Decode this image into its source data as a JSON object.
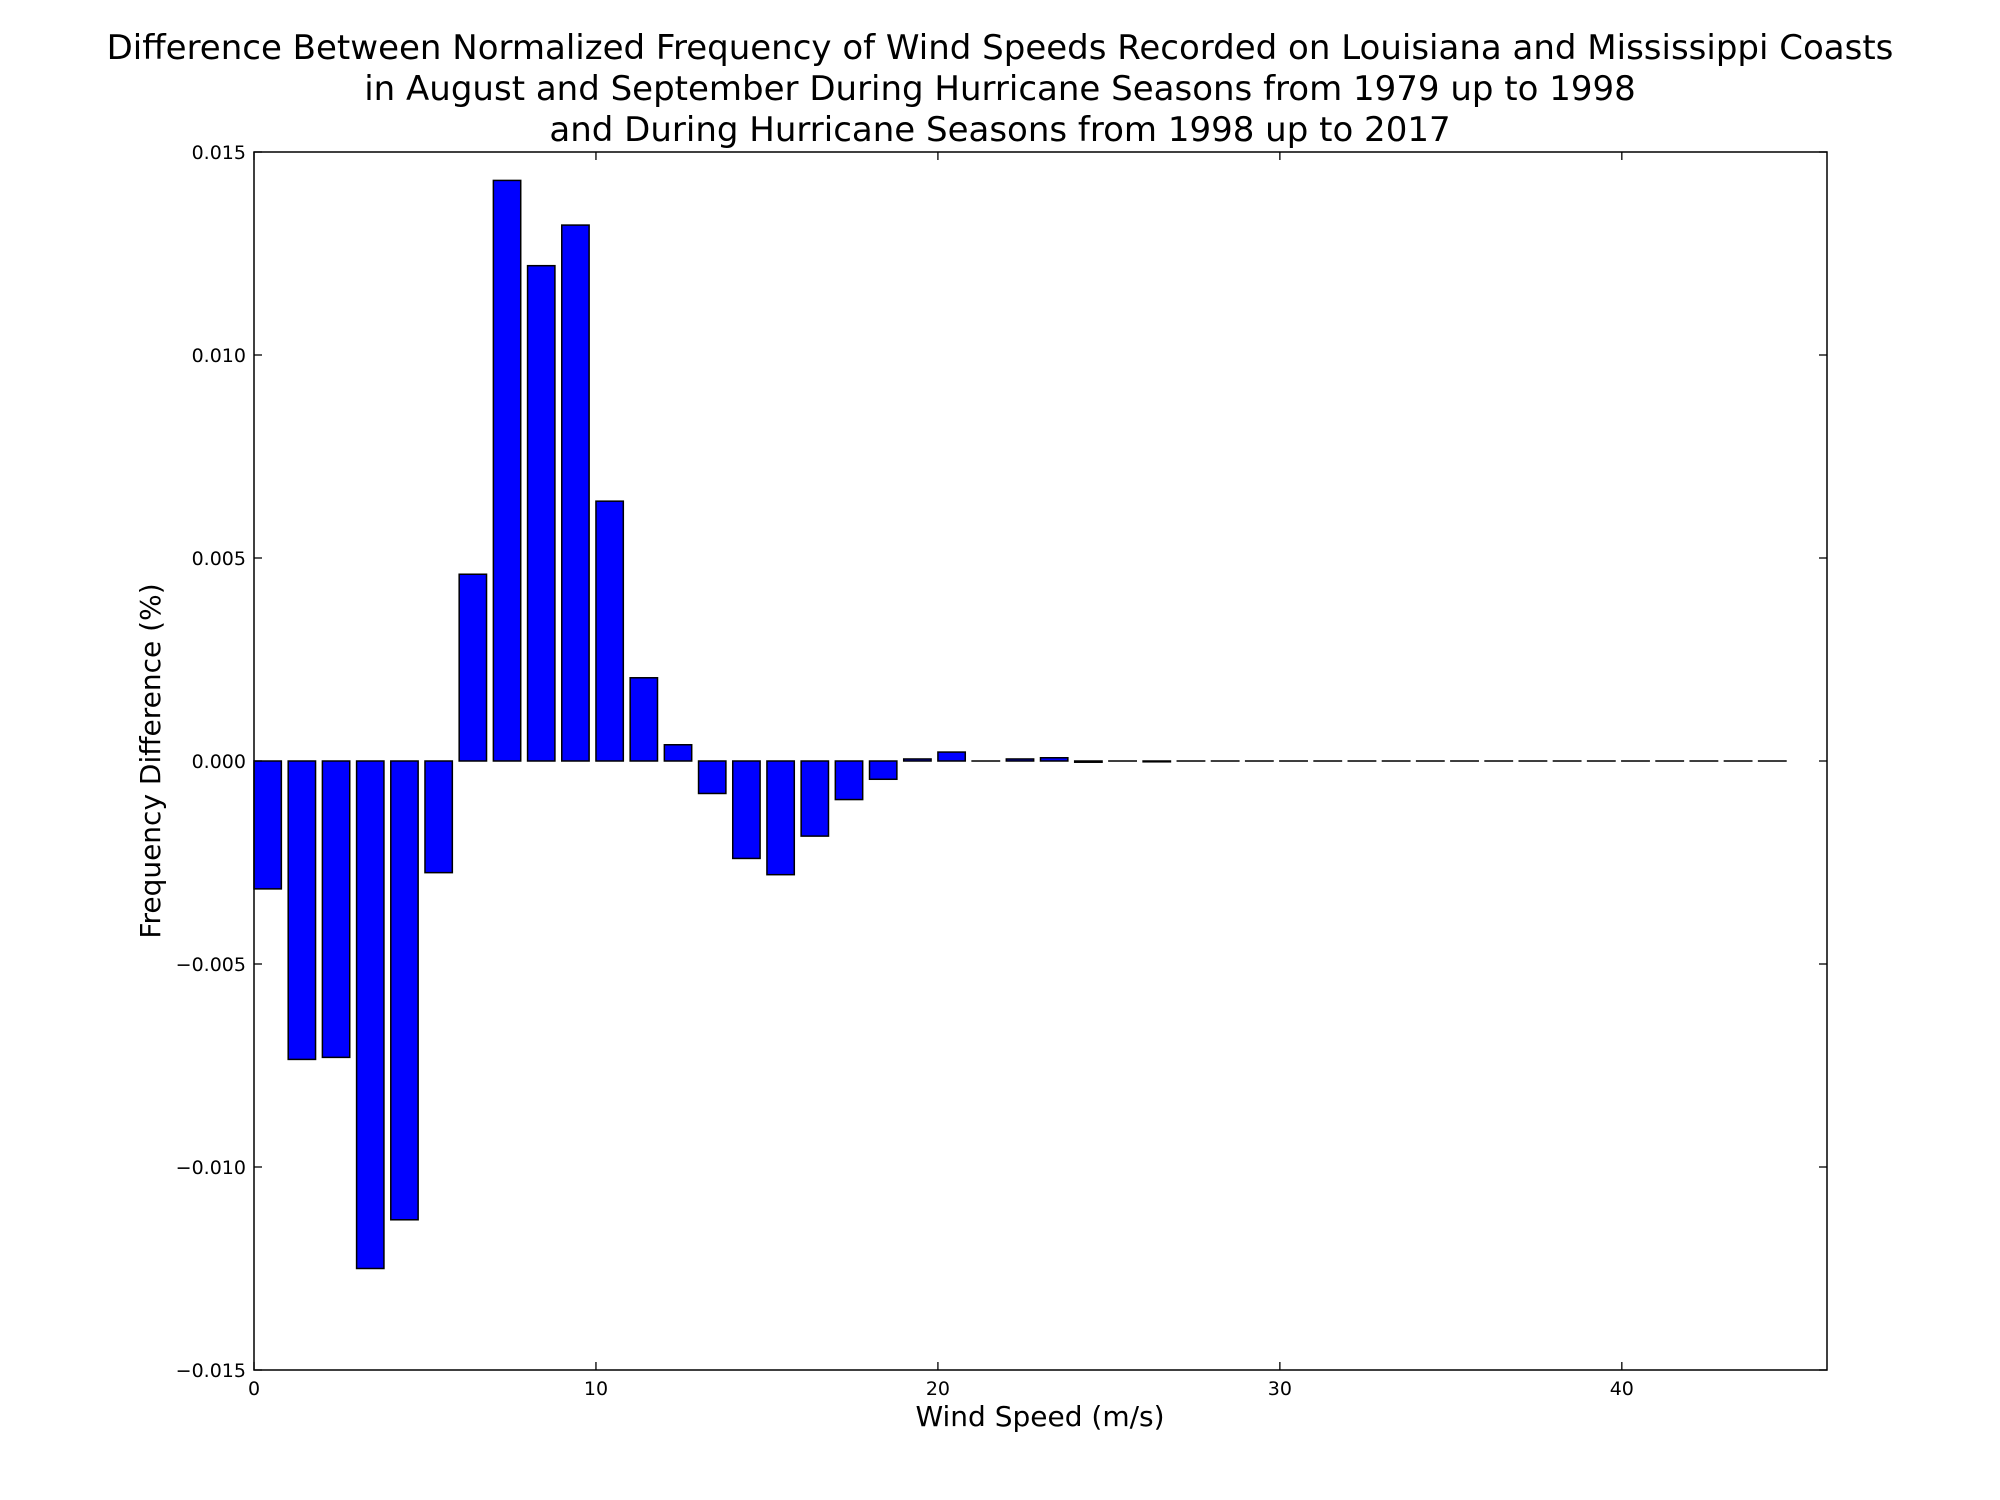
{
  "chart_data": {
    "type": "bar",
    "title_lines": [
      "Difference Between Normalized Frequency of Wind Speeds Recorded on Louisiana and Mississippi Coasts",
      "in August and September During Hurricane Seasons from 1979 up to 1998",
      "and During Hurricane Seasons from 1998 up to 2017"
    ],
    "xlabel": "Wind Speed (m/s)",
    "ylabel": "Frequency Difference (%)",
    "xlim": [
      0,
      46
    ],
    "ylim": [
      -0.015,
      0.015
    ],
    "x_ticks": [
      0,
      10,
      20,
      30,
      40
    ],
    "x_tick_labels": [
      "0",
      "10",
      "20",
      "30",
      "40"
    ],
    "y_ticks": [
      -0.015,
      -0.01,
      -0.005,
      0,
      0.005,
      0.01,
      0.015
    ],
    "y_tick_labels": [
      "−0.015",
      "−0.010",
      "−0.005",
      "0.000",
      "0.005",
      "0.010",
      "0.015"
    ],
    "bar_width": 0.8,
    "bar_color": "#0000ff",
    "bar_edge_color": "#000000",
    "grid": false,
    "x": [
      0,
      1,
      2,
      3,
      4,
      5,
      6,
      7,
      8,
      9,
      10,
      11,
      12,
      13,
      14,
      15,
      16,
      17,
      18,
      19,
      20,
      21,
      22,
      23,
      24,
      25,
      26,
      27,
      28,
      29,
      30,
      31,
      32,
      33,
      34,
      35,
      36,
      37,
      38,
      39,
      40,
      41,
      42,
      43,
      44
    ],
    "values": [
      -0.00315,
      -0.00735,
      -0.0073,
      -0.0125,
      -0.0113,
      -0.00275,
      0.0046,
      0.0143,
      0.0122,
      0.0132,
      0.0064,
      0.00205,
      0.0004,
      -0.0008,
      -0.0024,
      -0.0028,
      -0.00185,
      -0.00095,
      -0.00045,
      5e-05,
      0.00022,
      0.0,
      5e-05,
      8e-05,
      -3e-05,
      0.0,
      -2e-05,
      0.0,
      0.0,
      0.0,
      0.0,
      0.0,
      0.0,
      0.0,
      0.0,
      0.0,
      0.0,
      0.0,
      0.0,
      0.0,
      0.0,
      0.0,
      0.0,
      0.0,
      0.0
    ]
  }
}
